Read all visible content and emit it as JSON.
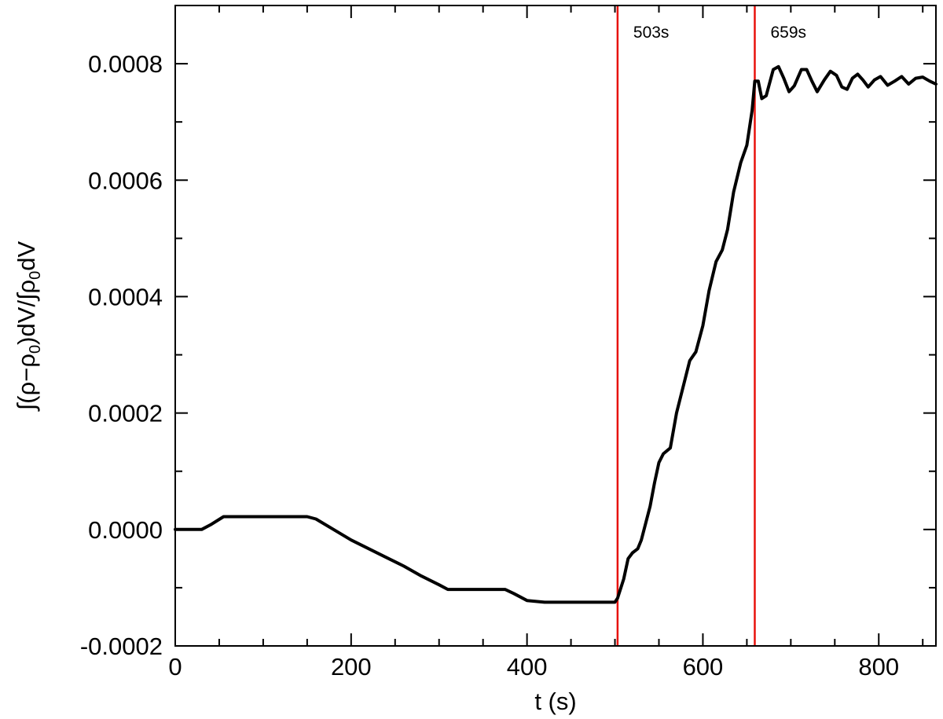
{
  "chart_data": {
    "type": "line",
    "title": "",
    "xlabel": "t (s)",
    "ylabel_parts": {
      "integral_open": "∫(",
      "rho": "ρ",
      "minus": "−",
      "rho0": "ρ",
      "sub0": "0",
      "close": ")dV/∫",
      "rho_den": "ρ",
      "sub0_den": "0",
      "dv": "dV"
    },
    "xlim": [
      0,
      865
    ],
    "ylim": [
      -0.0002,
      0.0009
    ],
    "x_ticks": [
      {
        "value": 0,
        "label": "0"
      },
      {
        "value": 200,
        "label": "200"
      },
      {
        "value": 400,
        "label": "400"
      },
      {
        "value": 600,
        "label": "600"
      },
      {
        "value": 800,
        "label": "800"
      }
    ],
    "x_minor_step": 50,
    "y_ticks": [
      {
        "value": -0.0002,
        "label": "-0.0002"
      },
      {
        "value": 0.0,
        "label": "0.0000"
      },
      {
        "value": 0.0002,
        "label": "0.0002"
      },
      {
        "value": 0.0004,
        "label": "0.0004"
      },
      {
        "value": 0.0006,
        "label": "0.0006"
      },
      {
        "value": 0.0008,
        "label": "0.0008"
      }
    ],
    "y_minor_step": 0.0001,
    "grid": false,
    "legend": "none",
    "series": [
      {
        "color": "#000000",
        "points": [
          [
            0,
            0.0
          ],
          [
            30,
            0.0
          ],
          [
            40,
            8e-06
          ],
          [
            55,
            2.2e-05
          ],
          [
            70,
            2.2e-05
          ],
          [
            100,
            2.2e-05
          ],
          [
            130,
            2.2e-05
          ],
          [
            150,
            2.2e-05
          ],
          [
            160,
            1.8e-05
          ],
          [
            180,
            0.0
          ],
          [
            200,
            -1.8e-05
          ],
          [
            220,
            -3.3e-05
          ],
          [
            240,
            -4.8e-05
          ],
          [
            260,
            -6.3e-05
          ],
          [
            280,
            -8e-05
          ],
          [
            300,
            -9.5e-05
          ],
          [
            310,
            -0.000103
          ],
          [
            330,
            -0.000103
          ],
          [
            350,
            -0.000103
          ],
          [
            375,
            -0.000103
          ],
          [
            385,
            -0.00011
          ],
          [
            400,
            -0.000122
          ],
          [
            420,
            -0.000125
          ],
          [
            450,
            -0.000125
          ],
          [
            480,
            -0.000125
          ],
          [
            500,
            -0.000125
          ],
          [
            503,
            -0.000118
          ],
          [
            510,
            -8.5e-05
          ],
          [
            515,
            -5e-05
          ],
          [
            520,
            -4e-05
          ],
          [
            526,
            -3.3e-05
          ],
          [
            530,
            -1.8e-05
          ],
          [
            540,
            4e-05
          ],
          [
            545,
            8e-05
          ],
          [
            550,
            0.000115
          ],
          [
            555,
            0.00013
          ],
          [
            563,
            0.00014
          ],
          [
            570,
            0.0002
          ],
          [
            580,
            0.00026
          ],
          [
            585,
            0.00029
          ],
          [
            592,
            0.000305
          ],
          [
            600,
            0.00035
          ],
          [
            607,
            0.00041
          ],
          [
            615,
            0.00046
          ],
          [
            622,
            0.00048
          ],
          [
            628,
            0.000515
          ],
          [
            635,
            0.00058
          ],
          [
            643,
            0.00063
          ],
          [
            650,
            0.00066
          ],
          [
            656,
            0.00072
          ],
          [
            659,
            0.00077
          ],
          [
            663,
            0.00077
          ],
          [
            667,
            0.00074
          ],
          [
            672,
            0.000745
          ],
          [
            680,
            0.00079
          ],
          [
            686,
            0.000795
          ],
          [
            692,
            0.000775
          ],
          [
            698,
            0.000752
          ],
          [
            704,
            0.000762
          ],
          [
            712,
            0.00079
          ],
          [
            718,
            0.00079
          ],
          [
            724,
            0.00077
          ],
          [
            730,
            0.000752
          ],
          [
            738,
            0.000772
          ],
          [
            745,
            0.000787
          ],
          [
            752,
            0.00078
          ],
          [
            758,
            0.00076
          ],
          [
            764,
            0.000756
          ],
          [
            770,
            0.000775
          ],
          [
            776,
            0.000782
          ],
          [
            782,
            0.000772
          ],
          [
            788,
            0.00076
          ],
          [
            795,
            0.000772
          ],
          [
            802,
            0.000778
          ],
          [
            810,
            0.000763
          ],
          [
            818,
            0.00077
          ],
          [
            826,
            0.000778
          ],
          [
            834,
            0.000765
          ],
          [
            842,
            0.000775
          ],
          [
            850,
            0.000777
          ],
          [
            858,
            0.00077
          ],
          [
            865,
            0.000765
          ]
        ]
      }
    ],
    "vlines": [
      {
        "x": 503,
        "label": "503s",
        "color": "#e8120c"
      },
      {
        "x": 659,
        "label": "659s",
        "color": "#e8120c"
      }
    ]
  }
}
